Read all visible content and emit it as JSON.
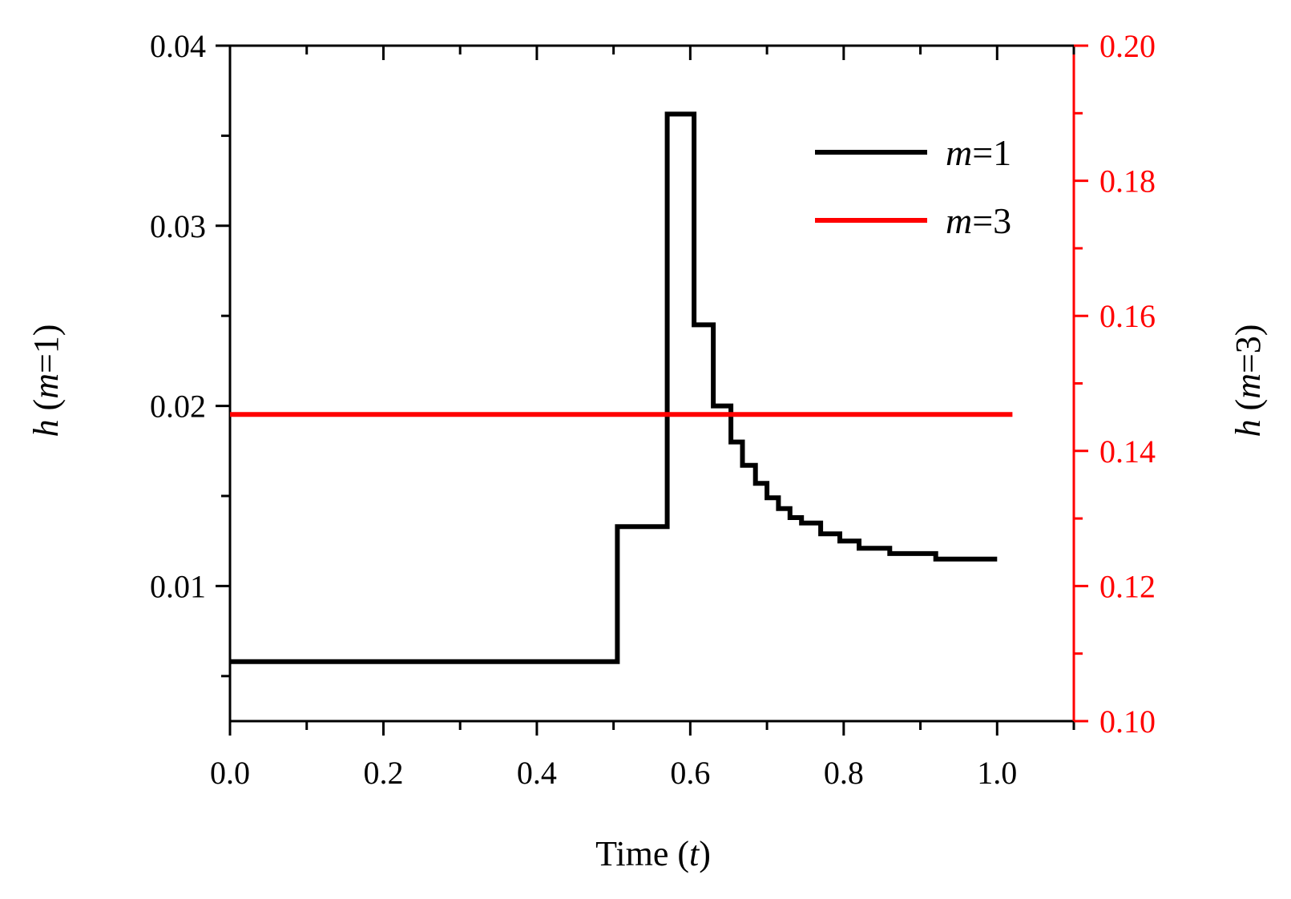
{
  "chart_data": {
    "type": "line",
    "x_axis": {
      "label_prefix": "Time (",
      "label_var": "t",
      "label_suffix": ")",
      "range": [
        0.0,
        1.1
      ],
      "ticks": [
        0.0,
        0.2,
        0.4,
        0.6,
        0.8,
        1.0
      ],
      "tick_labels": [
        "0.0",
        "0.2",
        "0.4",
        "0.6",
        "0.8",
        "1.0"
      ],
      "minor_step": 0.1
    },
    "y_left": {
      "label_var": "h",
      "label_open": " (",
      "label_m": "m",
      "label_eq": "=1)",
      "range": [
        0.0025,
        0.04
      ],
      "ticks": [
        0.01,
        0.02,
        0.03,
        0.04
      ],
      "tick_labels": [
        "0.01",
        "0.02",
        "0.03",
        "0.04"
      ],
      "minor_ticks": [
        0.005,
        0.015,
        0.025,
        0.035
      ],
      "color": "#000000"
    },
    "y_right": {
      "label_var": "h",
      "label_open": " (",
      "label_m": "m",
      "label_eq": "=3)",
      "range": [
        0.1,
        0.2
      ],
      "ticks": [
        0.1,
        0.12,
        0.14,
        0.16,
        0.18,
        0.2
      ],
      "tick_labels": [
        "0.10",
        "0.12",
        "0.14",
        "0.16",
        "0.18",
        "0.20"
      ],
      "minor_ticks": [
        0.11,
        0.13,
        0.15,
        0.17,
        0.19
      ],
      "color": "#ff0000"
    },
    "series": [
      {
        "name_var": "m",
        "name_eq": "=1",
        "axis": "left",
        "color": "#000000",
        "step": true,
        "x": [
          0.0,
          0.505,
          0.505,
          0.57,
          0.57,
          0.605,
          0.605,
          0.63,
          0.63,
          0.653,
          0.653,
          0.668,
          0.668,
          0.685,
          0.685,
          0.7,
          0.7,
          0.715,
          0.715,
          0.73,
          0.73,
          0.745,
          0.745,
          0.77,
          0.77,
          0.795,
          0.795,
          0.82,
          0.82,
          0.86,
          0.86,
          0.92,
          0.92,
          1.0
        ],
        "y": [
          0.0058,
          0.0058,
          0.0133,
          0.0133,
          0.0362,
          0.0362,
          0.0245,
          0.0245,
          0.02,
          0.02,
          0.018,
          0.018,
          0.0167,
          0.0167,
          0.0157,
          0.0157,
          0.0149,
          0.0149,
          0.0143,
          0.0143,
          0.0138,
          0.0138,
          0.0135,
          0.0135,
          0.0129,
          0.0129,
          0.0125,
          0.0125,
          0.0121,
          0.0121,
          0.0118,
          0.0118,
          0.0115,
          0.0115
        ]
      },
      {
        "name_var": "m",
        "name_eq": "=3",
        "axis": "right",
        "color": "#ff0000",
        "step": false,
        "x": [
          0.0,
          1.02
        ],
        "y": [
          0.1454,
          0.1454
        ]
      }
    ],
    "legend_position": "top-right",
    "grid": false
  }
}
